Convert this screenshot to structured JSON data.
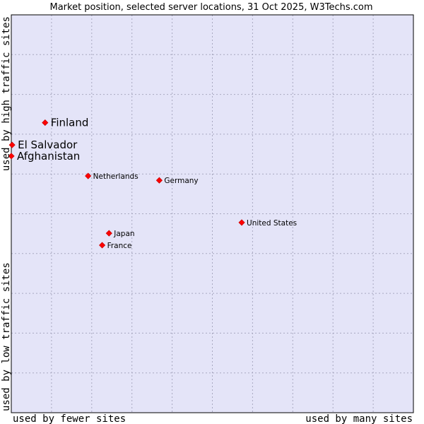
{
  "chart_data": {
    "type": "scatter",
    "title": "Market position, selected server locations, 31 Oct 2025, W3Techs.com",
    "xlabel_left": "used by fewer sites",
    "xlabel_right": "used by many sites",
    "ylabel_bottom": "used by low traffic sites",
    "ylabel_top": "used by high traffic sites",
    "xlim": [
      0,
      100
    ],
    "ylim": [
      0,
      100
    ],
    "grid": true,
    "points": [
      {
        "name": "Finland",
        "x": 8.4,
        "y": 72.9,
        "emphasis": true
      },
      {
        "name": "El Salvador",
        "x": 0.2,
        "y": 67.3,
        "emphasis": true
      },
      {
        "name": "Afghanistan",
        "x": 0.0,
        "y": 64.5,
        "emphasis": true
      },
      {
        "name": "Netherlands",
        "x": 19.1,
        "y": 59.5,
        "emphasis": false
      },
      {
        "name": "Germany",
        "x": 36.8,
        "y": 58.4,
        "emphasis": false
      },
      {
        "name": "United States",
        "x": 57.3,
        "y": 47.8,
        "emphasis": false
      },
      {
        "name": "Japan",
        "x": 24.3,
        "y": 45.1,
        "emphasis": false
      },
      {
        "name": "France",
        "x": 22.6,
        "y": 42.1,
        "emphasis": false
      }
    ]
  },
  "colors": {
    "plot_background": "#e4e4f8",
    "grid": "#a8a8c0",
    "marker": "#ff0000",
    "marker_edge": "#cc0000"
  }
}
